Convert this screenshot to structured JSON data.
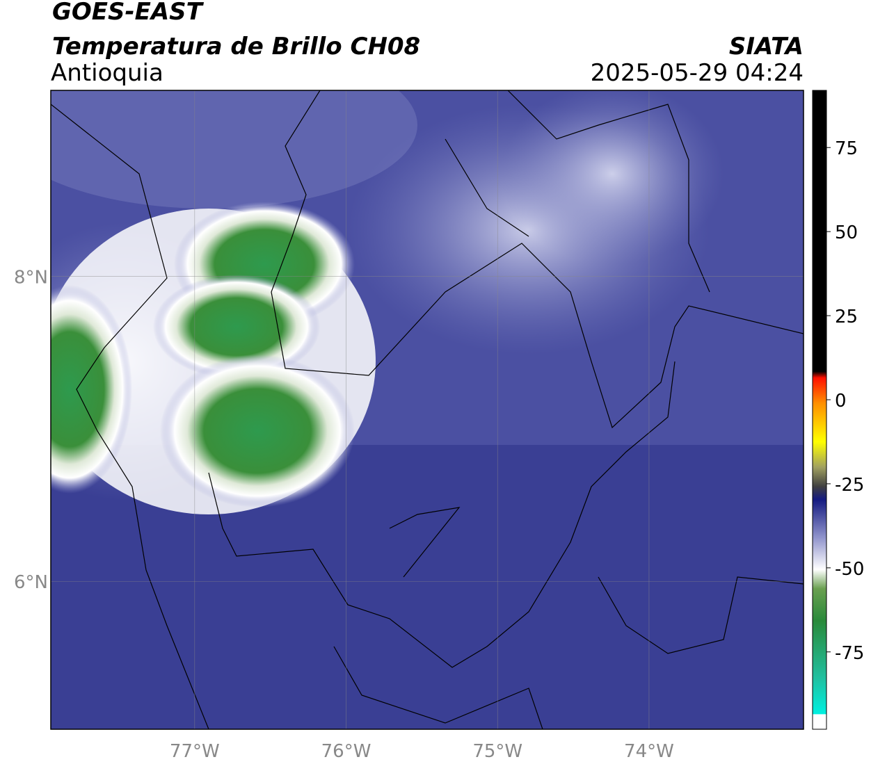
{
  "header": {
    "satellite": "GOES-EAST",
    "product": "Temperatura de Brillo CH08",
    "region": "Antioquia",
    "agency": "SIATA",
    "datetime": "2025-05-29 04:24"
  },
  "map": {
    "xlim": [
      -77.95,
      -72.98
    ],
    "ylim": [
      5.03,
      9.22
    ],
    "xticks": [
      {
        "value": -77,
        "label": "77°W"
      },
      {
        "value": -76,
        "label": "76°W"
      },
      {
        "value": -75,
        "label": "75°W"
      },
      {
        "value": -74,
        "label": "74°W"
      }
    ],
    "yticks": [
      {
        "value": 8,
        "label": "8°N"
      },
      {
        "value": 6,
        "label": "6°N"
      }
    ],
    "grid": true
  },
  "colorbar": {
    "lim": [
      -98,
      92
    ],
    "ticks": [
      75,
      50,
      25,
      0,
      -25,
      -50,
      -75
    ]
  }
}
